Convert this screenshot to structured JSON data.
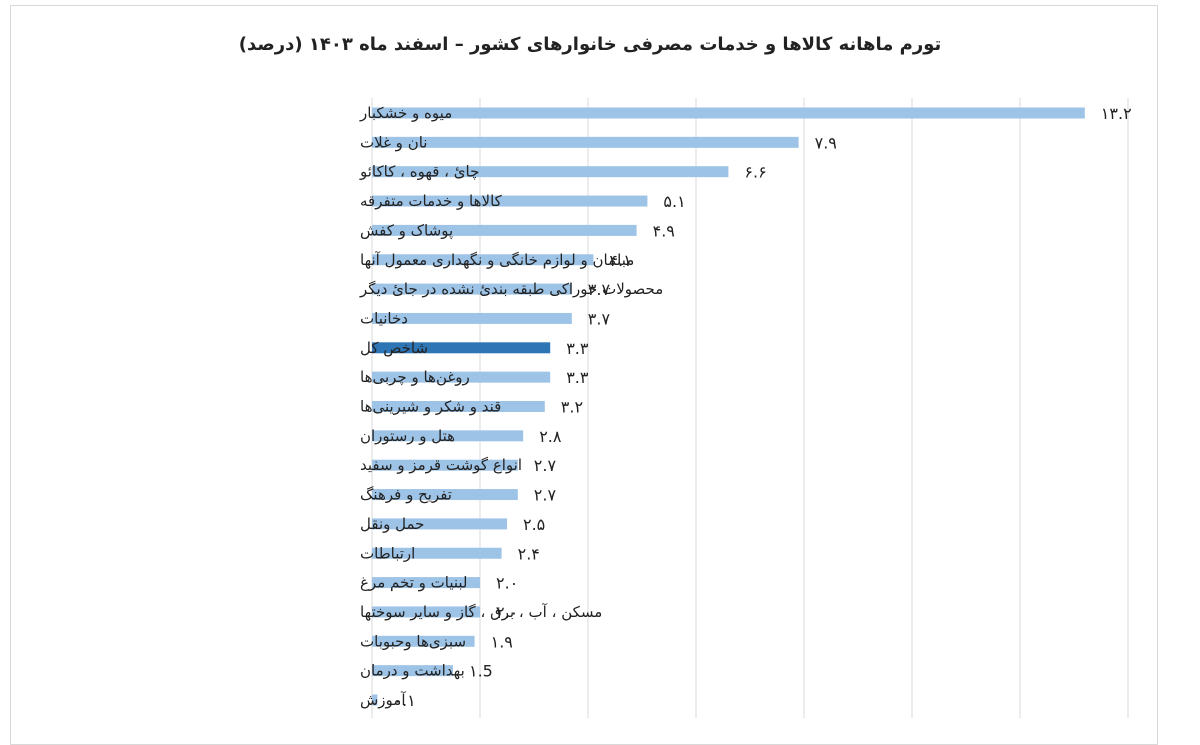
{
  "chart_data": {
    "type": "bar",
    "orientation": "horizontal",
    "title": "تورم ماهانه کالاها و خدمات مصرفی خانوارهای کشور – اسفند ماه ۱۴۰۳ (درصد)",
    "xlabel": "",
    "ylabel": "",
    "xlim": [
      0,
      14
    ],
    "grid": true,
    "categories": [
      "میوه و خشکبار",
      "نان و غلات",
      "چائ ، قهوه ، کاکائو",
      "کالاها و خدمات متفرقه",
      "پوشاک و کفش",
      "مبلمان و لوازم خانگی و نگهداری معمول آنها",
      "محصولات خوراکی طبقه بندیٔ نشده در جائ دیگر",
      "دخانیات",
      "شاخص کل",
      "روغن‌ها و چربی‌ها",
      "قند و شکر و شیرینی‌ها",
      "هتل و رستوران",
      "انواع گوشت قرمز و سفید",
      "تفریح و فرهنگ",
      "حمل ونقل",
      "ارتباطات",
      "لبنیات و تخم مرغ",
      "مسکن ، آب ، برق ، گاز و سایر سوختها",
      "سبزی‌ها وحبوبات",
      "بهداشت و درمان",
      "آموزش"
    ],
    "values": [
      13.2,
      7.9,
      6.6,
      5.1,
      4.9,
      4.1,
      3.7,
      3.7,
      3.3,
      3.3,
      3.2,
      2.8,
      2.7,
      2.7,
      2.5,
      2.4,
      2.0,
      2.0,
      1.9,
      1.5,
      0.1
    ],
    "value_labels": [
      "۱۳.۲",
      "۷.۹",
      "۶.۶",
      "۵.۱",
      "۴.۹",
      "۴.۱",
      "۳.۷",
      "۳.۷",
      "۳.۳",
      "۳.۳",
      "۳.۲",
      "۲.۸",
      "۲.۷",
      "۲.۷",
      "۲.۵",
      "۲.۴",
      "۲.۰",
      "۲.۰",
      "۱.۹",
      "۱.5",
      "۰.۱"
    ],
    "highlight_category": "شاخص کل",
    "colors": {
      "bar": "#9dc3e6",
      "highlight": "#2e75b6",
      "grid": "#d9d9d9"
    }
  }
}
